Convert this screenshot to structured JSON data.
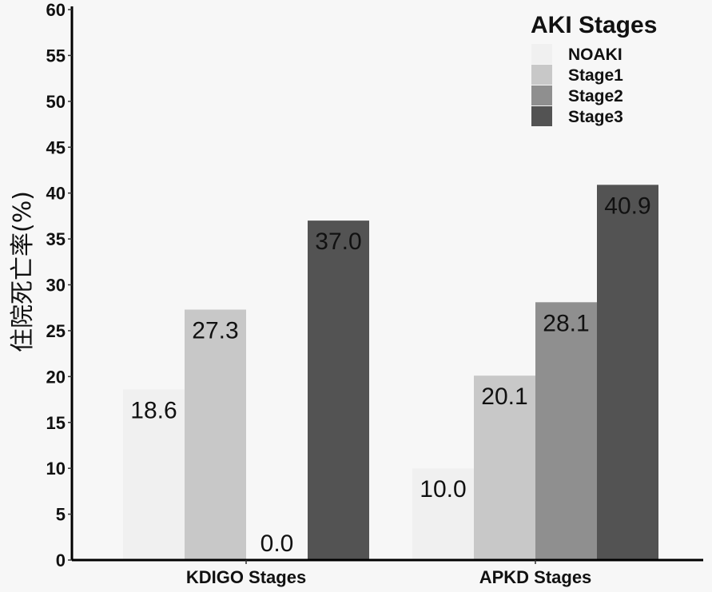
{
  "chart_data": {
    "type": "bar",
    "categories": [
      "KDIGO Stages",
      "APKD Stages"
    ],
    "series": [
      {
        "name": "NOAKI",
        "values": [
          18.6,
          10.0
        ],
        "color": "#f0f0f0"
      },
      {
        "name": "Stage1",
        "values": [
          27.3,
          20.1
        ],
        "color": "#c8c8c8"
      },
      {
        "name": "Stage2",
        "values": [
          0.0,
          28.1
        ],
        "color": "#8f8f8f"
      },
      {
        "name": "Stage3",
        "values": [
          37.0,
          40.9
        ],
        "color": "#535353"
      }
    ],
    "data_labels": [
      [
        "18.6",
        "10.0"
      ],
      [
        "27.3",
        "20.1"
      ],
      [
        "0.0",
        "28.1"
      ],
      [
        "37.0",
        "40.9"
      ]
    ],
    "title": "",
    "xlabel": "",
    "ylabel": "住院死亡率(%)",
    "ylim": [
      0,
      60
    ],
    "yticks": [
      0,
      5,
      10,
      15,
      20,
      25,
      30,
      35,
      40,
      45,
      50,
      55,
      60
    ],
    "grid": false,
    "legend": {
      "title": "AKI Stages",
      "position": "top-right"
    }
  }
}
